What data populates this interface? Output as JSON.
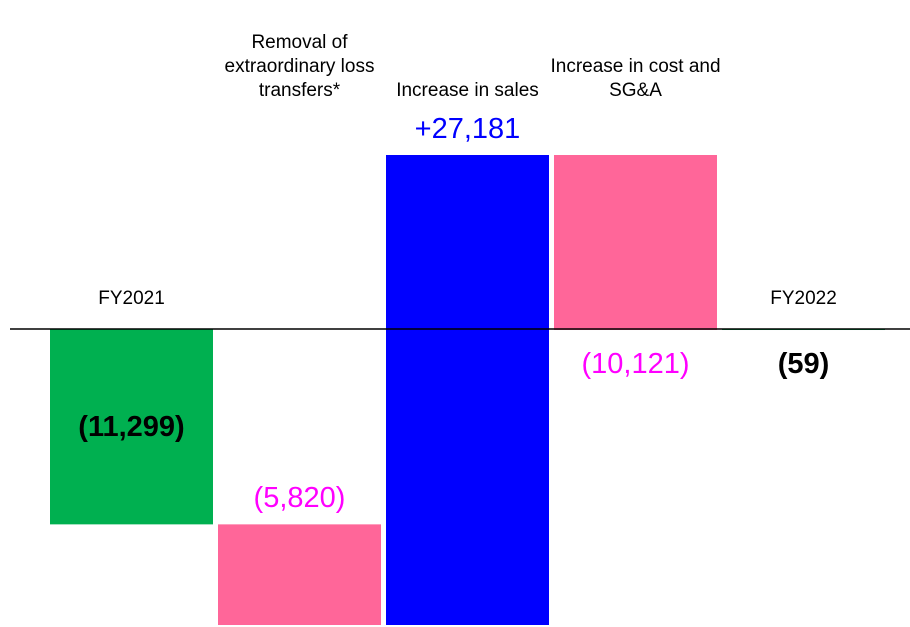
{
  "chart_data": {
    "type": "waterfall",
    "categories": [
      "FY2021",
      "Removal of extraordinary loss transfers*",
      "Increase in sales",
      "Increase in cost and SG&A",
      "FY2022"
    ],
    "values": [
      -11299,
      -5820,
      27181,
      -10121,
      -59
    ],
    "value_labels": [
      "(11,299)",
      "(5,820)",
      "+27,181",
      "(10,121)",
      "(59)"
    ],
    "is_total": [
      true,
      false,
      false,
      false,
      true
    ],
    "colors": [
      "#00b050",
      "#ff6699",
      "#0000ff",
      "#ff6699",
      "#00b050"
    ],
    "label_colors": [
      "#000000",
      "#ff00ff",
      "#0000ff",
      "#ff00ff",
      "#000000"
    ],
    "label_position": [
      "inside",
      "above",
      "above",
      "below",
      "below"
    ]
  }
}
